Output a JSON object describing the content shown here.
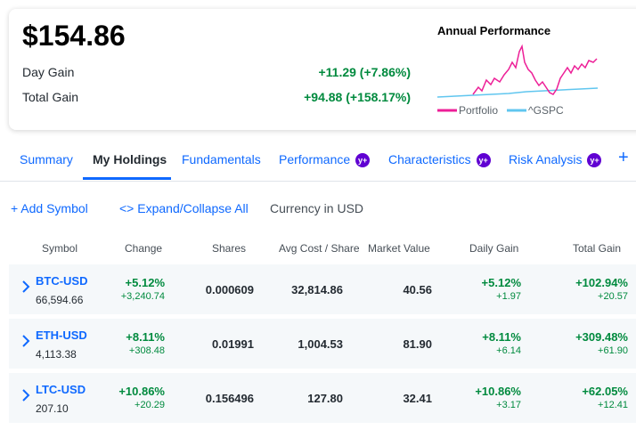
{
  "summary": {
    "value": "$154.86",
    "day_gain_label": "Day Gain",
    "day_gain": "+11.29 (+7.86%)",
    "total_gain_label": "Total Gain",
    "total_gain": "+94.88 (+158.17%)"
  },
  "performance_chart": {
    "title": "Annual Performance",
    "legend": [
      "Portfolio",
      "^GSPC"
    ]
  },
  "tabs": [
    {
      "label": "Summary"
    },
    {
      "label": "My Holdings"
    },
    {
      "label": "Fundamentals"
    },
    {
      "label": "Performance",
      "badge": "y+"
    },
    {
      "label": "Characteristics",
      "badge": "y+"
    },
    {
      "label": "Risk Analysis",
      "badge": "y+"
    }
  ],
  "actions": {
    "add_symbol": "Add Symbol",
    "expand_collapse": "Expand/Collapse All",
    "currency": "Currency in USD"
  },
  "table": {
    "headers": [
      "Symbol",
      "Change",
      "Shares",
      "Avg Cost / Share",
      "Market Value",
      "Daily Gain",
      "Total Gain"
    ],
    "rows": [
      {
        "symbol": "BTC-USD",
        "price": "66,594.66",
        "change_pct": "+5.12%",
        "change": "+3,240.74",
        "shares": "0.000609",
        "avg_cost": "32,814.86",
        "market_value": "40.56",
        "daily_gain_pct": "+5.12%",
        "daily_gain": "+1.97",
        "total_gain_pct": "+102.94%",
        "total_gain": "+20.57"
      },
      {
        "symbol": "ETH-USD",
        "price": "4,113.38",
        "change_pct": "+8.11%",
        "change": "+308.48",
        "shares": "0.01991",
        "avg_cost": "1,004.53",
        "market_value": "81.90",
        "daily_gain_pct": "+8.11%",
        "daily_gain": "+6.14",
        "total_gain_pct": "+309.48%",
        "total_gain": "+61.90"
      },
      {
        "symbol": "LTC-USD",
        "price": "207.10",
        "change_pct": "+10.86%",
        "change": "+20.29",
        "shares": "0.156496",
        "avg_cost": "127.80",
        "market_value": "32.41",
        "daily_gain_pct": "+10.86%",
        "daily_gain": "+3.17",
        "total_gain_pct": "+62.05%",
        "total_gain": "+12.41"
      }
    ]
  }
}
